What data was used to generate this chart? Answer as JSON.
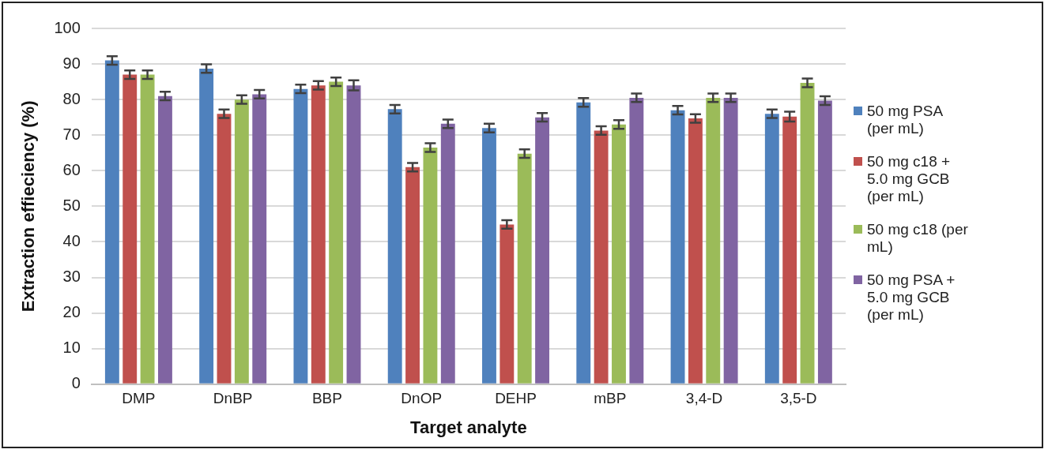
{
  "chart_data": {
    "type": "bar",
    "xlabel": "Target analyte",
    "ylabel": "Extraction effieciency (%)",
    "categories": [
      "DMP",
      "DnBP",
      "BBP",
      "DnOP",
      "DEHP",
      "mBP",
      "3,4-D",
      "3,5-D"
    ],
    "series": [
      {
        "name": "50 mg PSA (per mL)",
        "color": "#4f81bd",
        "values": [
          91,
          88.7,
          83,
          77.3,
          72,
          79.2,
          77,
          76
        ],
        "errors": [
          1.2,
          1.2,
          1.2,
          1.2,
          1.2,
          1.2,
          1.2,
          1.2
        ]
      },
      {
        "name": "50 mg c18 + 5.0 mg GCB (per mL)",
        "color": "#c0504d",
        "values": [
          87,
          76,
          84,
          61,
          44.9,
          71.3,
          74.7,
          75.2
        ],
        "errors": [
          1.2,
          1.2,
          1.2,
          1.2,
          1.2,
          1.2,
          1.2,
          1.4
        ]
      },
      {
        "name": "50 mg c18 (per mL)",
        "color": "#9bbb59",
        "values": [
          87,
          80,
          85,
          66.5,
          64.8,
          73,
          80.5,
          84.7
        ],
        "errors": [
          1.2,
          1.2,
          1.2,
          1.2,
          1.2,
          1.2,
          1.2,
          1.2
        ]
      },
      {
        "name": "50 mg PSA + 5.0 mg GCB (per mL)",
        "color": "#8064a2",
        "values": [
          81,
          81.5,
          84,
          73.2,
          75,
          80.5,
          80.5,
          79.7
        ],
        "errors": [
          1.2,
          1.2,
          1.4,
          1.2,
          1.2,
          1.2,
          1.2,
          1.2
        ]
      }
    ],
    "ylim": [
      0,
      100
    ],
    "yticks": [
      0,
      10,
      20,
      30,
      40,
      50,
      60,
      70,
      80,
      90,
      100
    ],
    "grid": "y",
    "legend": "right"
  }
}
